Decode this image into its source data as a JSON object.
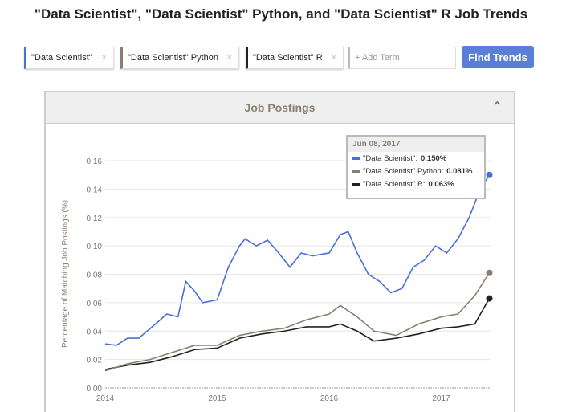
{
  "title": "\"Data Scientist\", \"Data Scientist\" Python, and \"Data Scientist\" R Job Trends",
  "terms": [
    {
      "label": "\"Data Scientist\"",
      "color": "#4a6fd6"
    },
    {
      "label": "\"Data Scientist\" Python",
      "color": "#8a7f6f"
    },
    {
      "label": "\"Data Scientist\" R",
      "color": "#222222"
    }
  ],
  "close_glyph": "×",
  "add_term_placeholder": "+ Add Term",
  "find_button": "Find Trends",
  "panel_title": "Job Postings",
  "collapse_icon": "chevron-up-icon",
  "tooltip": {
    "date": "Jun 08, 2017",
    "rows": [
      {
        "label": "\"Data Scientist\":",
        "value": "0.150%"
      },
      {
        "label": "\"Data Scientist\" Python:",
        "value": "0.081%"
      },
      {
        "label": "\"Data Scientist\" R:",
        "value": "0.063%"
      }
    ]
  },
  "chart_data": {
    "type": "line",
    "ylabel": "Percentage of Matching Job Postings (%)",
    "ylim": [
      0,
      0.16
    ],
    "yticks": [
      "0.00",
      "0.02",
      "0.04",
      "0.06",
      "0.08",
      "0.10",
      "0.12",
      "0.14",
      "0.16"
    ],
    "xticks": [
      "2014",
      "2015",
      "2016",
      "2017"
    ],
    "grid": true,
    "series": [
      {
        "name": "\"Data Scientist\"",
        "color": "#4a6fd6",
        "x": [
          2014.0,
          2014.1,
          2014.2,
          2014.3,
          2014.45,
          2014.55,
          2014.65,
          2014.72,
          2014.8,
          2014.87,
          2015.0,
          2015.1,
          2015.2,
          2015.25,
          2015.35,
          2015.45,
          2015.55,
          2015.65,
          2015.75,
          2015.85,
          2016.0,
          2016.1,
          2016.17,
          2016.25,
          2016.35,
          2016.45,
          2016.55,
          2016.65,
          2016.75,
          2016.85,
          2016.95,
          2017.05,
          2017.15,
          2017.25,
          2017.35,
          2017.43
        ],
        "y": [
          0.031,
          0.03,
          0.035,
          0.035,
          0.045,
          0.052,
          0.05,
          0.075,
          0.068,
          0.06,
          0.062,
          0.085,
          0.1,
          0.105,
          0.1,
          0.104,
          0.095,
          0.085,
          0.095,
          0.093,
          0.095,
          0.108,
          0.11,
          0.095,
          0.08,
          0.075,
          0.067,
          0.07,
          0.085,
          0.09,
          0.1,
          0.095,
          0.105,
          0.12,
          0.14,
          0.15
        ]
      },
      {
        "name": "\"Data Scientist\" Python",
        "color": "#8a7f6f",
        "x": [
          2014.0,
          2014.2,
          2014.4,
          2014.6,
          2014.8,
          2015.0,
          2015.2,
          2015.4,
          2015.6,
          2015.8,
          2016.0,
          2016.1,
          2016.25,
          2016.4,
          2016.6,
          2016.8,
          2017.0,
          2017.15,
          2017.3,
          2017.43
        ],
        "y": [
          0.012,
          0.017,
          0.02,
          0.025,
          0.03,
          0.03,
          0.037,
          0.04,
          0.042,
          0.048,
          0.052,
          0.058,
          0.05,
          0.04,
          0.037,
          0.045,
          0.05,
          0.052,
          0.065,
          0.081
        ]
      },
      {
        "name": "\"Data Scientist\" R",
        "color": "#222222",
        "x": [
          2014.0,
          2014.2,
          2014.4,
          2014.6,
          2014.8,
          2015.0,
          2015.2,
          2015.4,
          2015.6,
          2015.8,
          2016.0,
          2016.1,
          2016.25,
          2016.4,
          2016.6,
          2016.8,
          2017.0,
          2017.15,
          2017.3,
          2017.43
        ],
        "y": [
          0.013,
          0.016,
          0.018,
          0.022,
          0.027,
          0.028,
          0.035,
          0.038,
          0.04,
          0.043,
          0.043,
          0.045,
          0.04,
          0.033,
          0.035,
          0.038,
          0.042,
          0.043,
          0.045,
          0.063
        ]
      }
    ]
  }
}
